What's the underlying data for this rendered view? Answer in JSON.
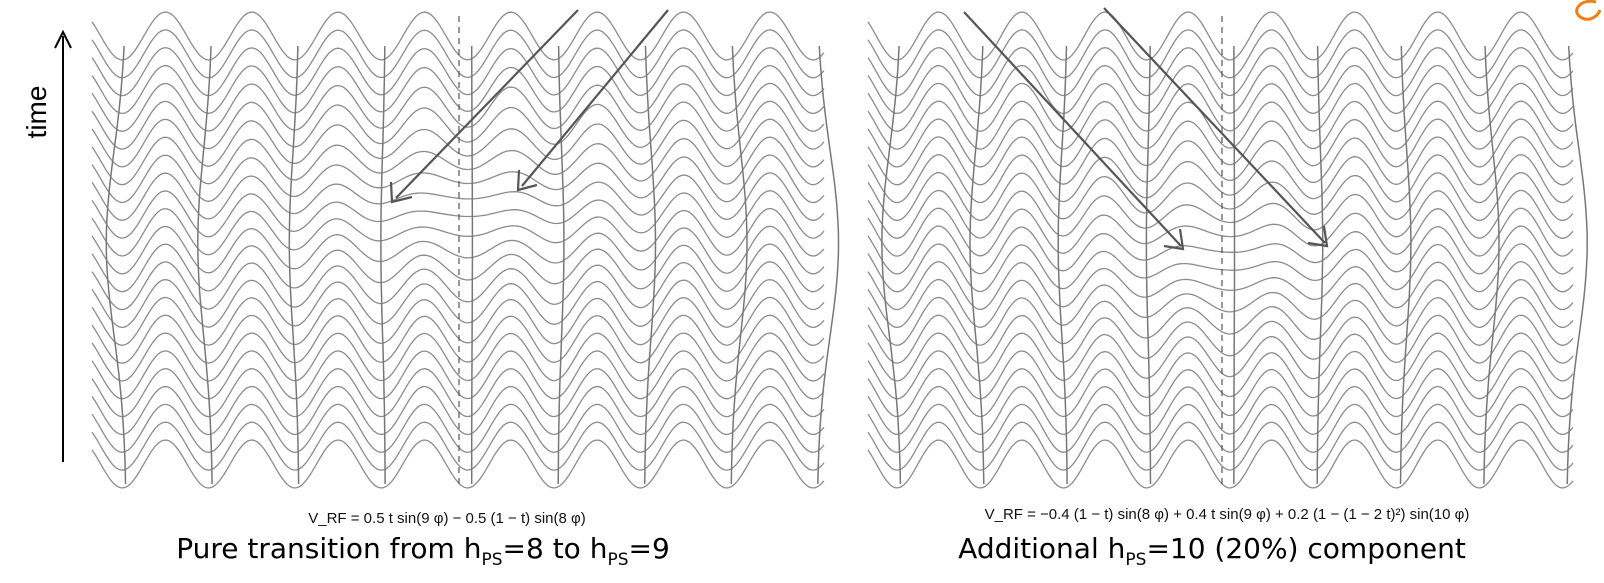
{
  "axis": {
    "label": "time"
  },
  "colors": {
    "waves": "#8c8c8c",
    "tracks": "#777777",
    "arrows": "#555555",
    "accent": "#f07f1a"
  },
  "panels": [
    {
      "id": "left",
      "formula": "V_RF = 0.5 t sin(9 φ) − 0.5 (1 − t) sin(8 φ)",
      "caption": {
        "pre": "Pure transition from h",
        "sub1": "PS",
        "mid": "=8 to h",
        "sub2": "PS",
        "post": "=9"
      }
    },
    {
      "id": "right",
      "formula": "V_RF = −0.4 (1 − t) sin(8 φ) + 0.4 t sin(9 φ) + 0.2 (1 − (1 − 2 t)²) sin(10 φ)",
      "caption": {
        "pre": "Additional h",
        "sub1": "PS",
        "mid": "=10 (20%) component",
        "sub2": "",
        "post": ""
      }
    }
  ]
}
